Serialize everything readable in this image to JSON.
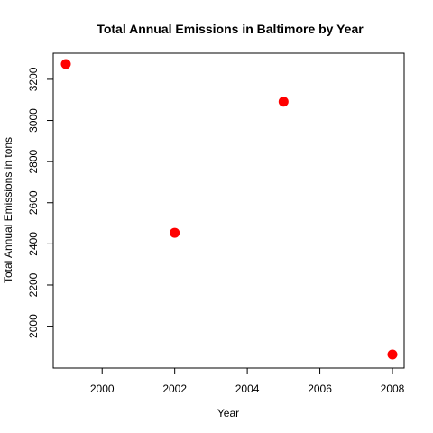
{
  "chart_data": {
    "type": "scatter",
    "title": "Total Annual Emissions in Baltimore by Year",
    "xlabel": "Year",
    "ylabel": "Total Annual Emissions in tons",
    "x": [
      1999,
      2002,
      2005,
      2008
    ],
    "y": [
      3274.18,
      2453.92,
      3091.35,
      1862.28
    ],
    "xlim": [
      1999,
      2008
    ],
    "ylim": [
      1862.28,
      3274.18
    ],
    "xticks": [
      2000,
      2002,
      2004,
      2006,
      2008
    ],
    "yticks": [
      2000,
      2200,
      2400,
      2600,
      2800,
      3000,
      3200
    ],
    "point_color": "#FF0000",
    "grid": false,
    "legend": "none"
  }
}
